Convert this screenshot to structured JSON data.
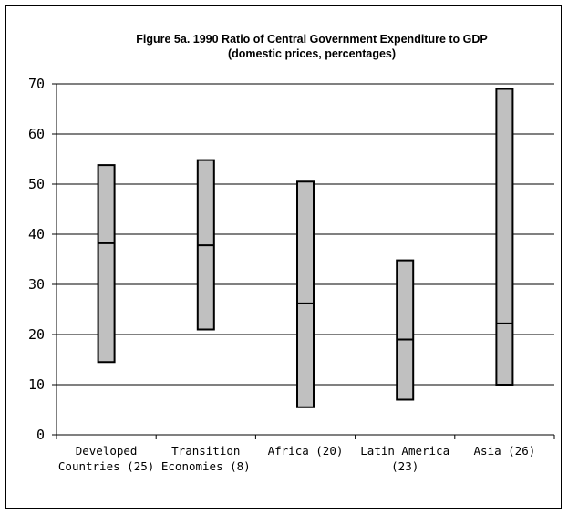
{
  "chart_data": {
    "type": "bar",
    "subtype": "floating-range-with-median",
    "title": "Figure 5a. 1990 Ratio of Central Government Expenditure to GDP",
    "subtitle": "(domestic prices, percentages)",
    "xlabel": "",
    "ylabel": "",
    "ylim": [
      0,
      70
    ],
    "yticks": [
      0,
      10,
      20,
      30,
      40,
      50,
      60,
      70
    ],
    "grid": true,
    "legend": "none",
    "categories": [
      [
        "Developed",
        "Countries (25)"
      ],
      [
        "Transition",
        "Economies (8)"
      ],
      [
        "Africa (20)"
      ],
      [
        "Latin America",
        "(23)"
      ],
      [
        "Asia (26)"
      ]
    ],
    "series": [
      {
        "low": [
          14.5,
          21.0,
          5.5,
          7.0,
          10.0
        ]
      },
      {
        "median": [
          38.2,
          37.8,
          26.2,
          19.0,
          22.2
        ]
      },
      {
        "high": [
          53.8,
          54.8,
          50.5,
          34.8,
          69.0
        ]
      }
    ],
    "colors": {
      "bar_fill": "#c0c0c0",
      "bar_stroke": "#000000",
      "grid": "#000000"
    }
  }
}
